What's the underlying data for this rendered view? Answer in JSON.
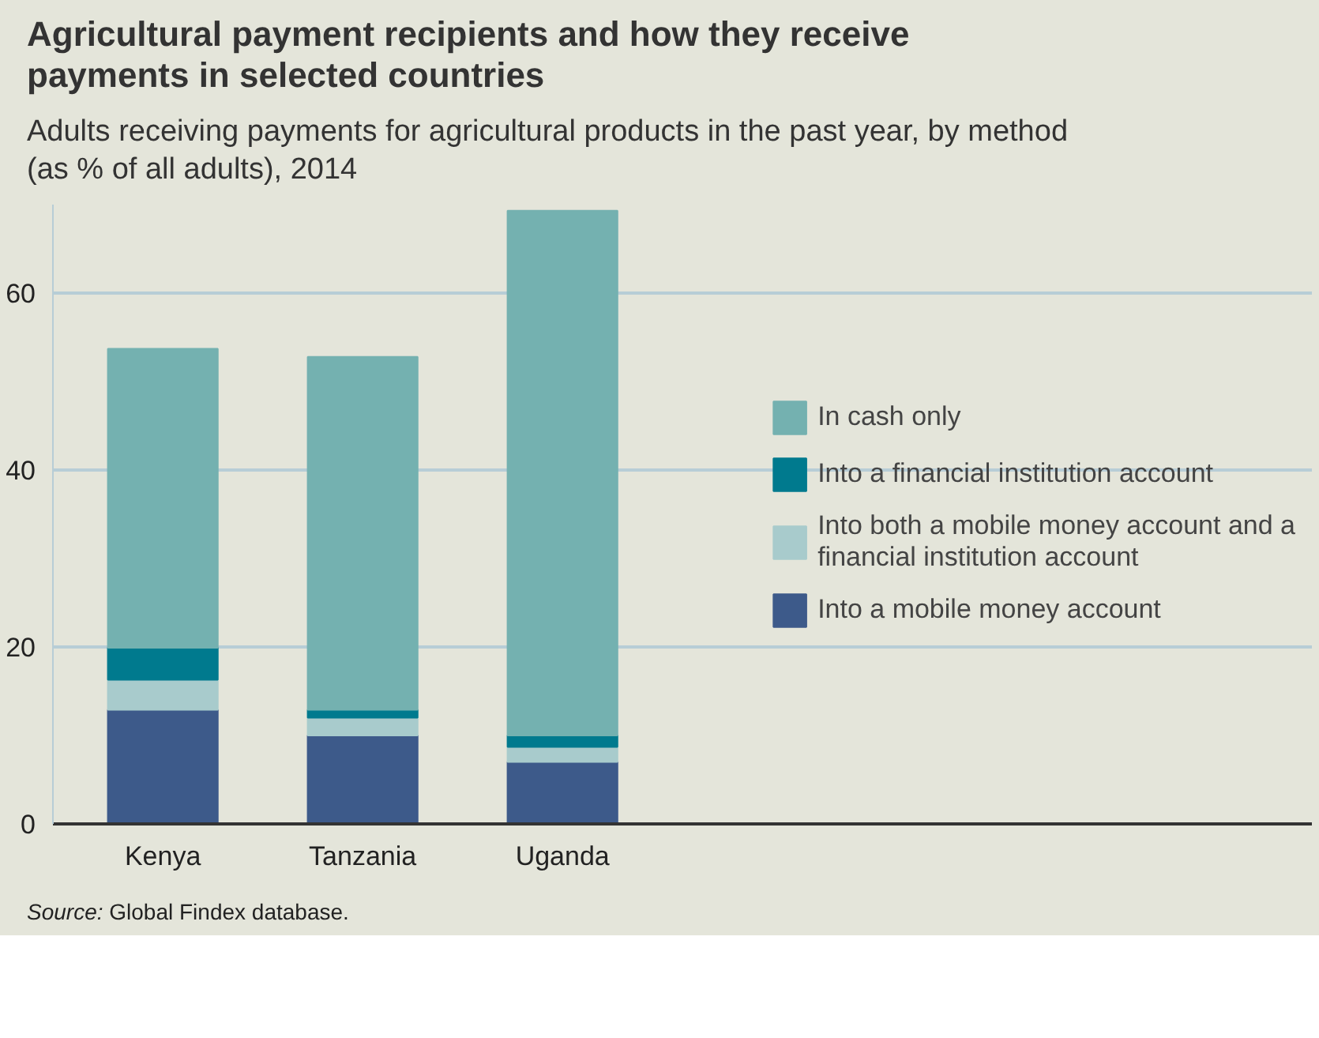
{
  "chart_data": {
    "type": "bar",
    "title": "Agricultural payment recipients and how they receive payments in selected countries",
    "subtitle": "Adults receiving payments for agricultural products in the past year, by method (as % of all adults), 2014",
    "categories": [
      "Kenya",
      "Tanzania",
      "Uganda"
    ],
    "stacked": true,
    "series": [
      {
        "name": "Into a mobile money account",
        "color": "#3d5a8a",
        "values": [
          12.9,
          10.0,
          7.0
        ]
      },
      {
        "name": "Into both a mobile money account and a financial institution account",
        "color": "#a8cbcc",
        "values": [
          3.4,
          2.0,
          1.7
        ]
      },
      {
        "name": "Into a financial institution account",
        "color": "#007a8e",
        "values": [
          3.6,
          0.9,
          1.3
        ]
      },
      {
        "name": "In cash only",
        "color": "#74b1b0",
        "values": [
          33.8,
          39.9,
          59.3
        ]
      }
    ],
    "ylim": [
      0,
      70
    ],
    "yticks": [
      0,
      20,
      40,
      60
    ],
    "grid": "y",
    "legend": "right",
    "annotations": [
      "Source: Global Findex database."
    ]
  }
}
